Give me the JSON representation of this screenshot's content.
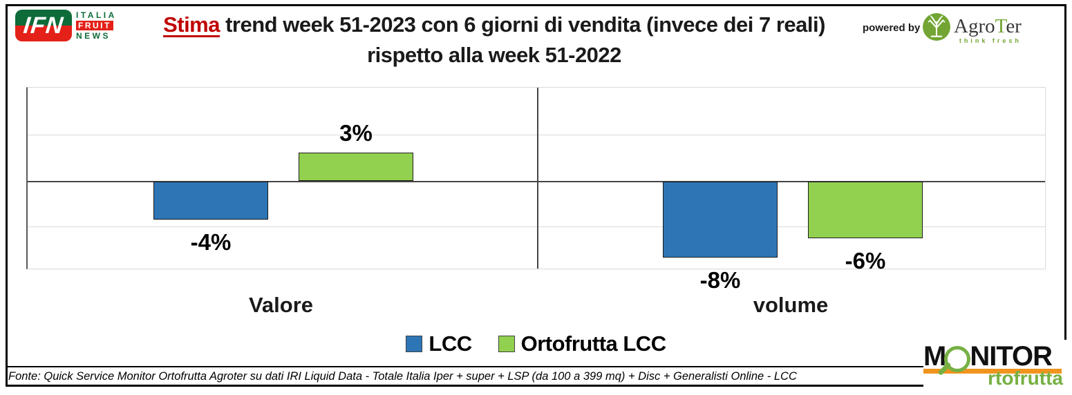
{
  "header": {
    "ifn": {
      "acronym": "IFN",
      "italia": "ITALIA",
      "fruit": "FRUIT",
      "news": "NEWS"
    },
    "title": {
      "highlight": "Stima",
      "rest": " trend week 51-2023 con 6 giorni di vendita (invece dei 7 reali)",
      "line2": "rispetto alla week 51-2022"
    },
    "powered_by": "powered by",
    "agroter": {
      "agro": "Agro",
      "t": "T",
      "er": "er",
      "tagline": "think fresh"
    }
  },
  "chart_data": {
    "type": "bar",
    "title": "Stima trend week 51-2023 con 6 giorni di vendita (invece dei 7 reali) rispetto alla week 51-2022",
    "categories": [
      "Valore",
      "volume"
    ],
    "series": [
      {
        "name": "LCC",
        "color": "#2E75B6",
        "values": [
          -4,
          -8
        ]
      },
      {
        "name": "Ortofrutta LCC",
        "color": "#92D050",
        "values": [
          3,
          -6
        ]
      }
    ],
    "unit": "%",
    "xlabel": "",
    "ylabel": "",
    "ylim": [
      -10,
      10
    ],
    "gridline_step": 5,
    "grid": true,
    "legend_position": "bottom",
    "value_labels": {
      "Valore": {
        "LCC": "-4%",
        "Ortofrutta LCC": "3%"
      },
      "volume": {
        "LCC": "-8%",
        "Ortofrutta LCC": "-6%"
      }
    }
  },
  "footer": {
    "fonte": "Fonte: Quick Service Monitor Ortofrutta Agroter su dati IRI Liquid Data - Totale Italia Iper + super + LSP (da 100 a 399 mq) + Disc + Generalisti Online - LCC",
    "monitor": {
      "m": "M",
      "nitor": "NITOR",
      "sub": "rtofrutta"
    }
  },
  "colors": {
    "title_highlight": "#C00000",
    "bar_blue": "#2E75B6",
    "bar_green": "#92D050",
    "ifn_green": "#0E6B3A",
    "ifn_red": "#E32119",
    "agroter_green": "#72A533",
    "agroter_text": "#3A3A3A",
    "monitor_orange": "#F0941F",
    "monitor_green": "#76B043"
  }
}
